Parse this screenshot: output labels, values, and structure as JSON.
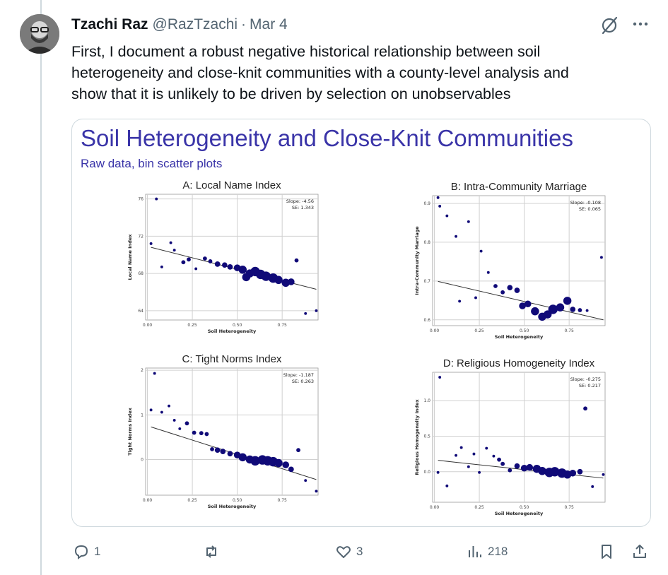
{
  "tweet": {
    "author_name": "Tzachi Raz",
    "handle": "@RazTzachi",
    "separator": "·",
    "date": "Mar 4",
    "text": "First, I document a robust negative historical relationship between soil\nheterogeneity and close-knit communities with a county-level analysis and\nshow that it is unlikely to be driven by selection on unobservables"
  },
  "icons": {
    "grok": "grok-icon",
    "more": "more-icon",
    "reply": "reply-icon",
    "repost": "repost-icon",
    "like": "like-icon",
    "views": "views-icon",
    "bookmark": "bookmark-icon",
    "share": "share-icon"
  },
  "colors": {
    "accent": "#3a34a8",
    "marker": "#100a78",
    "muted": "#536471"
  },
  "actions": {
    "reply_count": "1",
    "repost_count": "",
    "like_count": "3",
    "views_count": "218"
  },
  "figure": {
    "title": "Soil Heterogeneity and Close-Knit Communities",
    "subtitle": "Raw data, bin scatter plots"
  },
  "chart_data": [
    {
      "type": "scatter",
      "title": "A: Local Name Index",
      "xlabel": "Soil Heterogeneity",
      "ylabel": "Local Name Index",
      "xlim": [
        -0.01,
        0.95
      ],
      "ylim": [
        63,
        76.5
      ],
      "xticks": [
        "0.00",
        "0.25",
        "0.50",
        "0.75"
      ],
      "yticks": [
        "64",
        "68",
        "72",
        "76"
      ],
      "xtick_values": [
        0,
        0.25,
        0.5,
        0.75
      ],
      "ytick_values": [
        64,
        68,
        72,
        76
      ],
      "grid": true,
      "slope_label": "Slope: -4.56",
      "se_label": "SE: 1.343",
      "fit_line": [
        [
          0.02,
          70.8
        ],
        [
          0.94,
          66.3
        ]
      ],
      "points": [
        [
          0.05,
          76.0,
          1
        ],
        [
          0.02,
          71.2,
          1
        ],
        [
          0.13,
          71.3,
          1
        ],
        [
          0.15,
          70.5,
          1
        ],
        [
          0.08,
          68.7,
          1
        ],
        [
          0.2,
          69.2,
          2
        ],
        [
          0.23,
          69.5,
          2
        ],
        [
          0.27,
          68.5,
          1
        ],
        [
          0.32,
          69.6,
          2
        ],
        [
          0.35,
          69.3,
          2
        ],
        [
          0.39,
          69.0,
          3
        ],
        [
          0.43,
          68.9,
          3
        ],
        [
          0.46,
          68.7,
          3
        ],
        [
          0.5,
          68.6,
          4
        ],
        [
          0.53,
          68.4,
          5
        ],
        [
          0.57,
          68.0,
          5
        ],
        [
          0.6,
          68.2,
          6
        ],
        [
          0.63,
          67.9,
          6
        ],
        [
          0.66,
          67.7,
          6
        ],
        [
          0.7,
          67.5,
          6
        ],
        [
          0.73,
          67.3,
          5
        ],
        [
          0.77,
          67.0,
          5
        ],
        [
          0.8,
          67.1,
          4
        ],
        [
          0.83,
          69.4,
          2
        ],
        [
          0.88,
          63.7,
          1
        ],
        [
          0.94,
          64.0,
          1
        ],
        [
          0.55,
          67.6,
          5
        ]
      ]
    },
    {
      "type": "scatter",
      "title": "B: Intra-Community Marriage",
      "xlabel": "Soil Heterogeneity",
      "ylabel": "Intra-Community Marriage",
      "xlim": [
        -0.01,
        0.95
      ],
      "ylim": [
        0.585,
        0.92
      ],
      "xticks": [
        "0.00",
        "0.25",
        "0.50",
        "0.75"
      ],
      "yticks": [
        "0.6",
        "0.7",
        "0.8",
        "0.9"
      ],
      "xtick_values": [
        0,
        0.25,
        0.5,
        0.75
      ],
      "ytick_values": [
        0.6,
        0.7,
        0.8,
        0.9
      ],
      "grid": true,
      "slope_label": "Slope: -0.108",
      "se_label": "SE: 0.065",
      "fit_line": [
        [
          0.02,
          0.699
        ],
        [
          0.94,
          0.6
        ]
      ],
      "points": [
        [
          0.02,
          0.915,
          1
        ],
        [
          0.03,
          0.893,
          1
        ],
        [
          0.07,
          0.868,
          1
        ],
        [
          0.12,
          0.815,
          1
        ],
        [
          0.19,
          0.853,
          1
        ],
        [
          0.26,
          0.777,
          1
        ],
        [
          0.3,
          0.722,
          1
        ],
        [
          0.14,
          0.648,
          1
        ],
        [
          0.23,
          0.657,
          1
        ],
        [
          0.34,
          0.687,
          2
        ],
        [
          0.38,
          0.671,
          2
        ],
        [
          0.42,
          0.683,
          3
        ],
        [
          0.46,
          0.676,
          3
        ],
        [
          0.49,
          0.636,
          4
        ],
        [
          0.52,
          0.641,
          4
        ],
        [
          0.56,
          0.622,
          5
        ],
        [
          0.6,
          0.608,
          5
        ],
        [
          0.63,
          0.614,
          5
        ],
        [
          0.66,
          0.627,
          6
        ],
        [
          0.7,
          0.632,
          5
        ],
        [
          0.74,
          0.649,
          5
        ],
        [
          0.77,
          0.627,
          3
        ],
        [
          0.81,
          0.625,
          2
        ],
        [
          0.85,
          0.624,
          1
        ],
        [
          0.93,
          0.761,
          1
        ]
      ]
    },
    {
      "type": "scatter",
      "title": "C: Tight Norms Index",
      "xlabel": "Soil Heterogeneity",
      "ylabel": "Tight Norms Index",
      "xlim": [
        -0.01,
        0.95
      ],
      "ylim": [
        -0.8,
        2.05
      ],
      "xticks": [
        "0.00",
        "0.25",
        "0.50",
        "0.75"
      ],
      "yticks": [
        "0",
        "1",
        "2"
      ],
      "xtick_values": [
        0,
        0.25,
        0.5,
        0.75
      ],
      "ytick_values": [
        0,
        1,
        2
      ],
      "grid": true,
      "slope_label": "Slope: -1.187",
      "se_label": "SE: 0.263",
      "fit_line": [
        [
          0.02,
          0.73
        ],
        [
          0.94,
          -0.45
        ]
      ],
      "points": [
        [
          0.04,
          1.93,
          1
        ],
        [
          0.02,
          1.11,
          1
        ],
        [
          0.08,
          1.06,
          1
        ],
        [
          0.12,
          1.2,
          1
        ],
        [
          0.15,
          0.88,
          1
        ],
        [
          0.18,
          0.69,
          1
        ],
        [
          0.22,
          0.81,
          2
        ],
        [
          0.26,
          0.6,
          2
        ],
        [
          0.3,
          0.59,
          2
        ],
        [
          0.33,
          0.57,
          2
        ],
        [
          0.39,
          0.21,
          3
        ],
        [
          0.42,
          0.18,
          3
        ],
        [
          0.46,
          0.13,
          3
        ],
        [
          0.5,
          0.1,
          4
        ],
        [
          0.53,
          0.05,
          5
        ],
        [
          0.57,
          0.0,
          5
        ],
        [
          0.6,
          -0.03,
          6
        ],
        [
          0.64,
          -0.01,
          6
        ],
        [
          0.67,
          -0.03,
          6
        ],
        [
          0.7,
          -0.05,
          6
        ],
        [
          0.73,
          -0.08,
          5
        ],
        [
          0.77,
          -0.12,
          4
        ],
        [
          0.8,
          -0.22,
          3
        ],
        [
          0.84,
          0.21,
          2
        ],
        [
          0.88,
          -0.47,
          1
        ],
        [
          0.94,
          -0.71,
          1
        ],
        [
          0.36,
          0.23,
          2
        ]
      ]
    },
    {
      "type": "scatter",
      "title": "D: Religious Homogeneity Index",
      "xlabel": "Soil Heterogeneity",
      "ylabel": "Religious Homogeneity Index",
      "xlim": [
        -0.01,
        0.95
      ],
      "ylim": [
        -0.43,
        1.4
      ],
      "xticks": [
        "0.00",
        "0.25",
        "0.50",
        "0.75"
      ],
      "yticks": [
        "0.0",
        "0.5",
        "1.0"
      ],
      "xtick_values": [
        0,
        0.25,
        0.5,
        0.75
      ],
      "ytick_values": [
        0,
        0.5,
        1.0
      ],
      "grid": true,
      "slope_label": "Slope: -0.275",
      "se_label": "SE: 0.217",
      "fit_line": [
        [
          0.02,
          0.16
        ],
        [
          0.94,
          -0.09
        ]
      ],
      "points": [
        [
          0.03,
          1.33,
          1
        ],
        [
          0.02,
          -0.01,
          1
        ],
        [
          0.07,
          -0.2,
          1
        ],
        [
          0.12,
          0.23,
          1
        ],
        [
          0.15,
          0.34,
          1
        ],
        [
          0.19,
          0.07,
          1
        ],
        [
          0.22,
          0.25,
          1
        ],
        [
          0.25,
          -0.01,
          1
        ],
        [
          0.29,
          0.33,
          1
        ],
        [
          0.33,
          0.22,
          1
        ],
        [
          0.36,
          0.17,
          2
        ],
        [
          0.38,
          0.11,
          2
        ],
        [
          0.42,
          0.02,
          2
        ],
        [
          0.46,
          0.08,
          3
        ],
        [
          0.5,
          0.05,
          4
        ],
        [
          0.53,
          0.06,
          4
        ],
        [
          0.57,
          0.04,
          5
        ],
        [
          0.6,
          0.01,
          5
        ],
        [
          0.64,
          -0.01,
          6
        ],
        [
          0.67,
          0.0,
          6
        ],
        [
          0.71,
          -0.02,
          6
        ],
        [
          0.74,
          -0.04,
          5
        ],
        [
          0.77,
          -0.02,
          4
        ],
        [
          0.81,
          0.0,
          3
        ],
        [
          0.84,
          0.89,
          2
        ],
        [
          0.88,
          -0.21,
          1
        ],
        [
          0.94,
          -0.04,
          1
        ]
      ]
    }
  ]
}
